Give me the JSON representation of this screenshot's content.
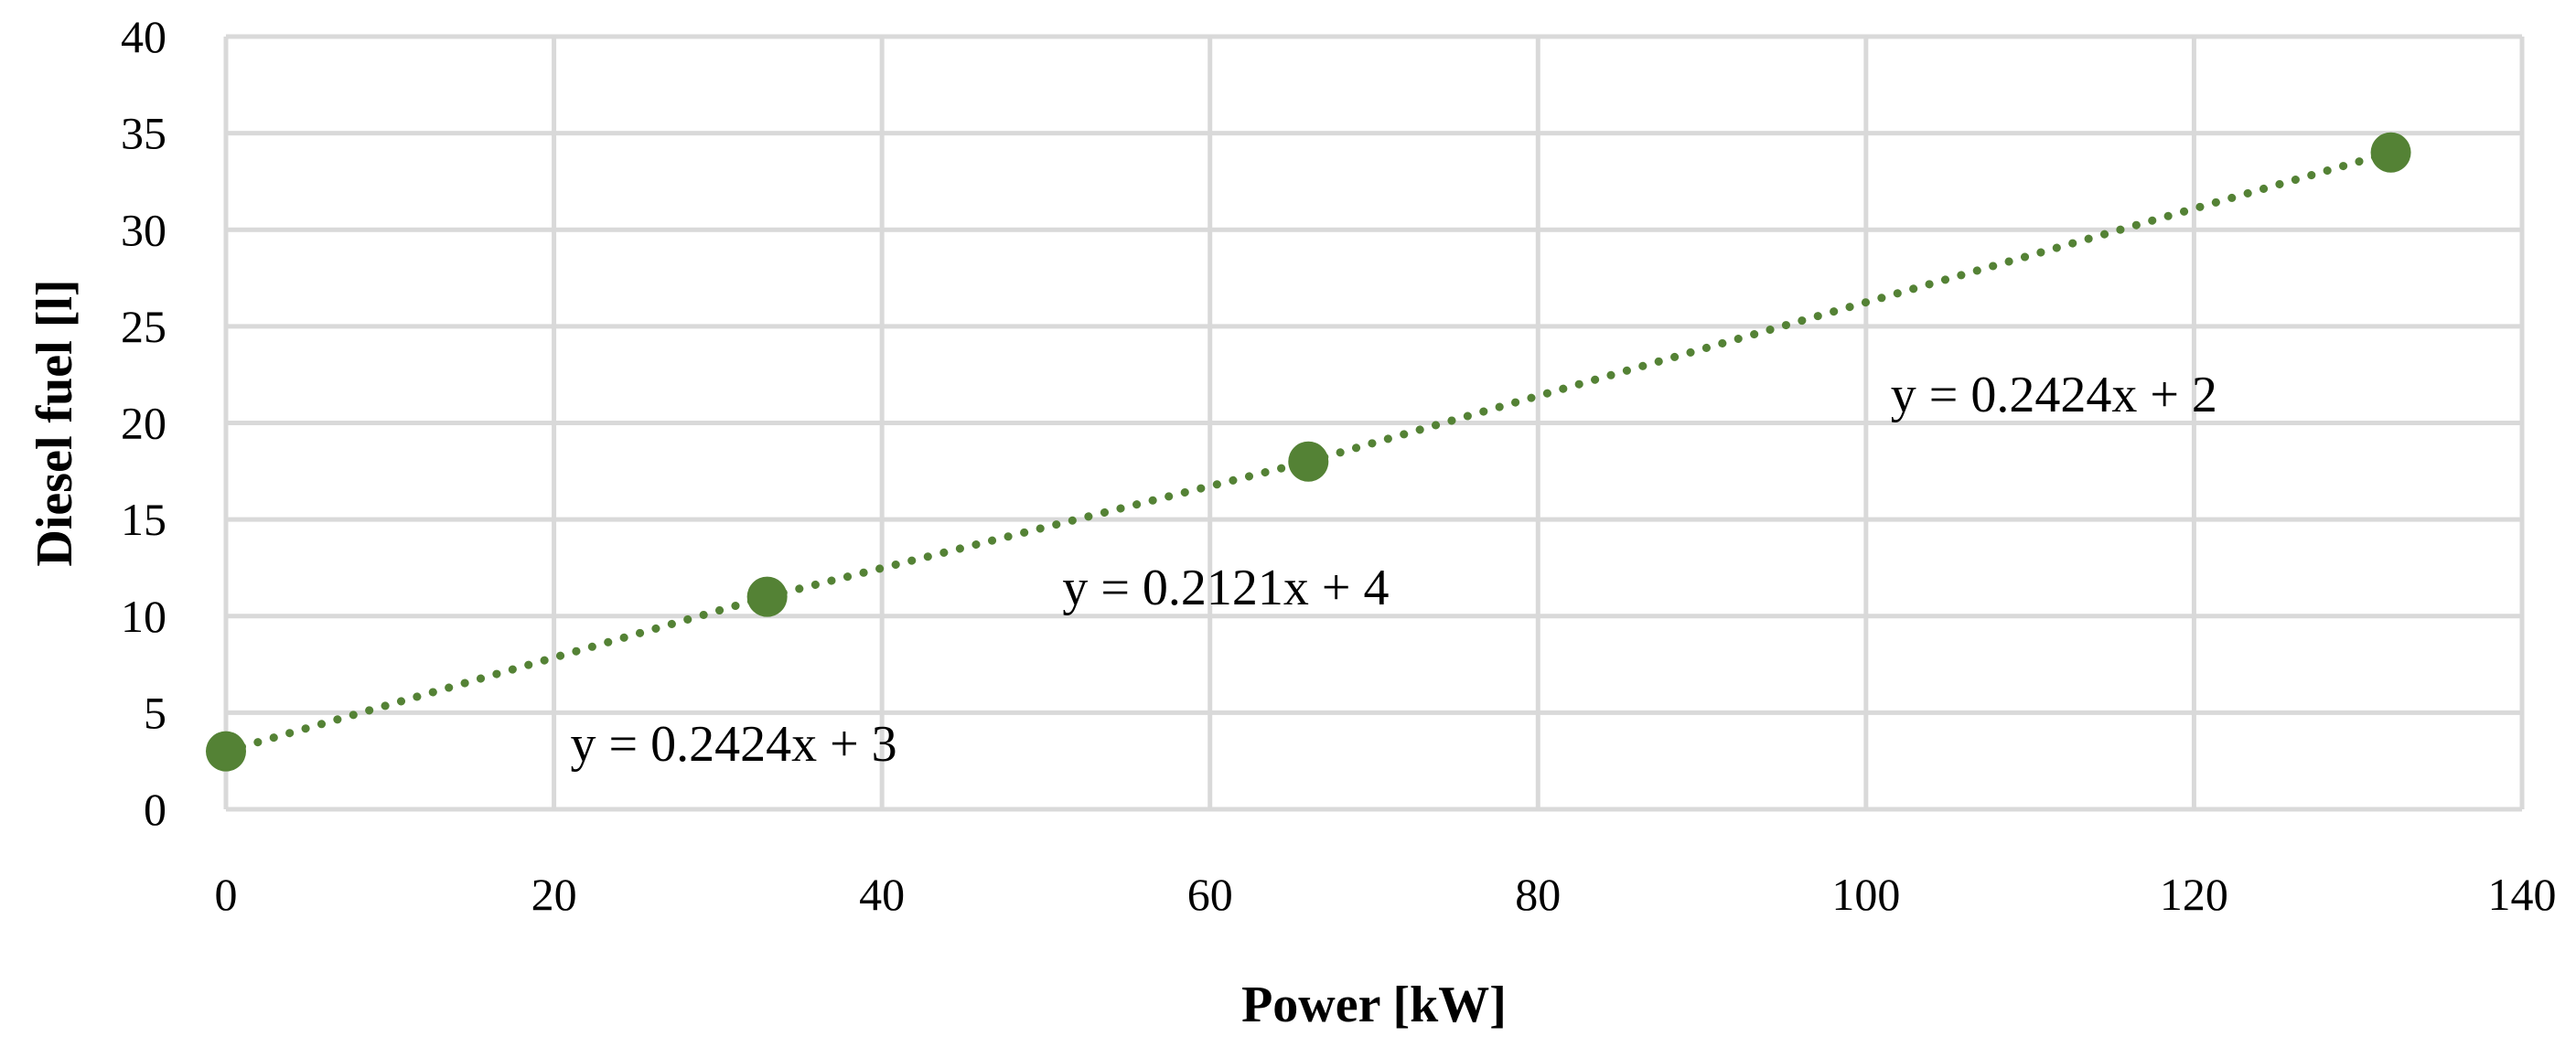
{
  "chart_data": {
    "type": "scatter",
    "title": "",
    "xlabel": "Power [kW]",
    "ylabel": "Diesel fuel [l]",
    "xlim": [
      0,
      140
    ],
    "ylim": [
      0,
      40
    ],
    "x_ticks": [
      0,
      20,
      40,
      60,
      80,
      100,
      120,
      140
    ],
    "y_ticks": [
      0,
      5,
      10,
      15,
      20,
      25,
      30,
      35,
      40
    ],
    "grid": true,
    "legend": "none",
    "marker_color": "#548235",
    "trendline_style": "dotted",
    "series": [
      {
        "points": [
          {
            "x": 0,
            "y": 3
          },
          {
            "x": 33,
            "y": 11
          },
          {
            "x": 66,
            "y": 18
          },
          {
            "x": 132,
            "y": 34
          }
        ]
      }
    ],
    "annotations": [
      {
        "text": "y = 0.2424x + 3",
        "x": 21,
        "y": 2.5
      },
      {
        "text": "y = 0.2121x + 4",
        "x": 51,
        "y": 10.6
      },
      {
        "text": "y = 0.2424x + 2",
        "x": 101.5,
        "y": 20.6
      }
    ]
  }
}
